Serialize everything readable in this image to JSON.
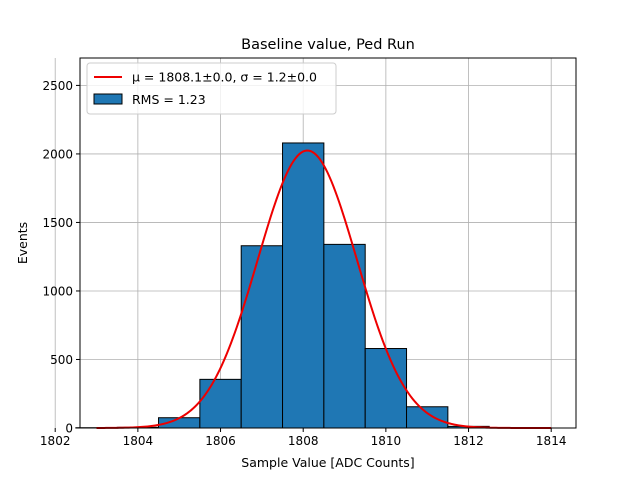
{
  "chart_data": {
    "type": "bar",
    "title": "Baseline value, Ped Run",
    "xlabel": "Sample Value [ADC Counts]",
    "ylabel": "Events",
    "xlim": [
      1802.6,
      1814.6
    ],
    "ylim": [
      0,
      2700
    ],
    "x_ticks": [
      1802,
      1804,
      1806,
      1808,
      1810,
      1812,
      1814
    ],
    "y_ticks": [
      0,
      500,
      1000,
      1500,
      2000,
      2500
    ],
    "grid": true,
    "legend_position": "top-left",
    "series": [
      {
        "name": "RMS = 1.23",
        "kind": "histogram",
        "bin_edges": [
          1802.5,
          1803.5,
          1804.5,
          1805.5,
          1806.5,
          1807.5,
          1808.5,
          1809.5,
          1810.5,
          1811.5,
          1812.5,
          1813.5
        ],
        "values": [
          2,
          5,
          75,
          355,
          1330,
          2080,
          1340,
          580,
          155,
          12,
          2
        ],
        "color": "#1f77b4"
      },
      {
        "name": "μ = 1808.1±0.0, σ = 1.2±0.0",
        "kind": "gaussian-fit",
        "mu": 1808.1,
        "sigma": 1.2,
        "amplitude": 2025,
        "x_range": [
          1803,
          1814
        ],
        "color": "#ee0000"
      }
    ]
  }
}
